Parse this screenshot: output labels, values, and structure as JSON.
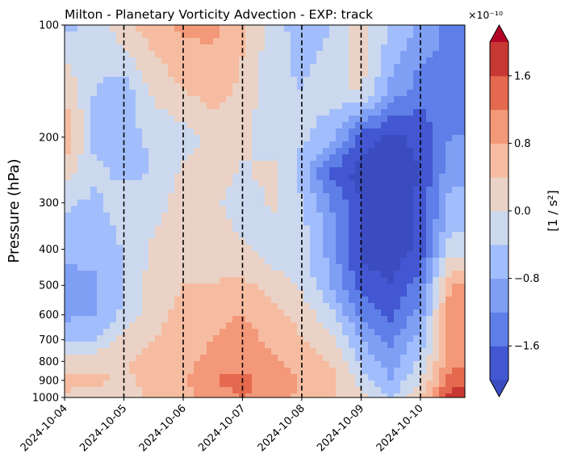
{
  "chart_data": {
    "type": "heatmap",
    "title": "Milton - Planetary Vorticity Advection - EXP: track",
    "ylabel": "Pressure (hPa)",
    "xlabel": "",
    "y_scale": "log",
    "y_inverted": true,
    "ylim": [
      1000,
      100
    ],
    "yticks": [
      100,
      200,
      300,
      400,
      500,
      600,
      700,
      800,
      900,
      1000
    ],
    "xlim": [
      "2024-10-04",
      "2024-10-10T18:00"
    ],
    "xticks": [
      "2024-10-04",
      "2024-10-05",
      "2024-10-06",
      "2024-10-07",
      "2024-10-08",
      "2024-10-09",
      "2024-10-10"
    ],
    "vertical_dashed_lines": [
      "2024-10-05",
      "2024-10-06",
      "2024-10-07",
      "2024-10-08",
      "2024-10-09",
      "2024-10-10"
    ],
    "colorbar": {
      "label": "[1 / s²]",
      "offset_text": "×10⁻¹⁰",
      "levels": [
        -2.0,
        -1.6,
        -1.2,
        -0.8,
        -0.4,
        0.0,
        0.4,
        0.8,
        1.2,
        1.6,
        2.0
      ],
      "tick_values": [
        -1.6,
        -0.8,
        0.0,
        0.8,
        1.6
      ],
      "tick_labels": [
        "−1.6",
        "−0.8",
        "0.0",
        "0.8",
        "1.6"
      ],
      "colors": [
        "#4257d1",
        "#5f7fe8",
        "#7f9ff5",
        "#a2bdfb",
        "#cbd8ee",
        "#ead3c6",
        "#f6bca1",
        "#f39879",
        "#e4694e",
        "#c83832"
      ],
      "under_color": "#3b4cc0",
      "over_color": "#b40426",
      "extend": "both"
    },
    "field": {
      "times": [
        "2024-10-04T00",
        "2024-10-04T12",
        "2024-10-05T00",
        "2024-10-05T12",
        "2024-10-06T00",
        "2024-10-06T12",
        "2024-10-07T00",
        "2024-10-07T12",
        "2024-10-08T00",
        "2024-10-08T12",
        "2024-10-09T00",
        "2024-10-09T12",
        "2024-10-10T00",
        "2024-10-10T12"
      ],
      "pressure_levels": [
        100,
        150,
        200,
        250,
        300,
        400,
        500,
        600,
        700,
        800,
        900,
        1000
      ],
      "units": "1e-10 s^-2",
      "values": [
        [
          -0.5,
          -0.3,
          0.3,
          0.6,
          0.9,
          0.9,
          0.5,
          -0.2,
          -0.6,
          -0.4,
          0.2,
          -0.4,
          -0.9,
          -1.3
        ],
        [
          0.4,
          -0.4,
          -0.6,
          0.1,
          0.4,
          0.6,
          0.3,
          -0.3,
          -0.4,
          -0.2,
          0.1,
          -0.9,
          -1.4,
          -1.3
        ],
        [
          0.7,
          -0.5,
          -0.6,
          -0.3,
          -0.2,
          0.1,
          0.2,
          -0.4,
          -0.3,
          -0.6,
          -1.8,
          -2.1,
          -1.9,
          -1.2
        ],
        [
          0.2,
          -0.3,
          -0.5,
          -0.4,
          0.1,
          0.3,
          -0.1,
          0.2,
          -0.6,
          -1.7,
          -2.2,
          -2.3,
          -2.0,
          -0.9
        ],
        [
          -0.3,
          -0.5,
          -0.2,
          -0.2,
          0.2,
          0.2,
          -0.4,
          0.1,
          -0.3,
          -1.2,
          -2.0,
          -2.2,
          -1.9,
          -0.7
        ],
        [
          -0.7,
          -0.6,
          -0.4,
          0.1,
          0.2,
          0.3,
          0.1,
          -0.3,
          -0.2,
          -1.0,
          -2.1,
          -2.2,
          -1.9,
          -0.2
        ],
        [
          -1.0,
          -0.9,
          -0.4,
          0.2,
          0.4,
          0.4,
          0.5,
          0.3,
          -0.1,
          -0.8,
          -1.8,
          -2.0,
          -1.4,
          0.8
        ],
        [
          -0.9,
          -0.8,
          -0.3,
          0.3,
          0.5,
          0.7,
          0.8,
          0.5,
          0.3,
          -0.3,
          -1.3,
          -1.7,
          -1.0,
          1.0
        ],
        [
          -0.5,
          -0.4,
          0.1,
          0.4,
          0.5,
          0.8,
          1.0,
          0.7,
          0.4,
          0.1,
          -0.8,
          -1.3,
          -0.6,
          0.9
        ],
        [
          0.2,
          0.3,
          0.4,
          0.5,
          0.6,
          1.0,
          1.1,
          0.9,
          0.6,
          0.4,
          -0.5,
          -1.0,
          -0.3,
          1.1
        ],
        [
          0.6,
          0.5,
          0.3,
          0.6,
          0.7,
          1.2,
          1.3,
          1.1,
          0.8,
          0.6,
          -0.2,
          -0.8,
          0.0,
          1.4
        ],
        [
          0.3,
          0.2,
          0.2,
          0.5,
          0.7,
          1.0,
          1.2,
          1.0,
          0.7,
          0.5,
          0.1,
          -0.5,
          0.3,
          1.8
        ]
      ]
    }
  }
}
